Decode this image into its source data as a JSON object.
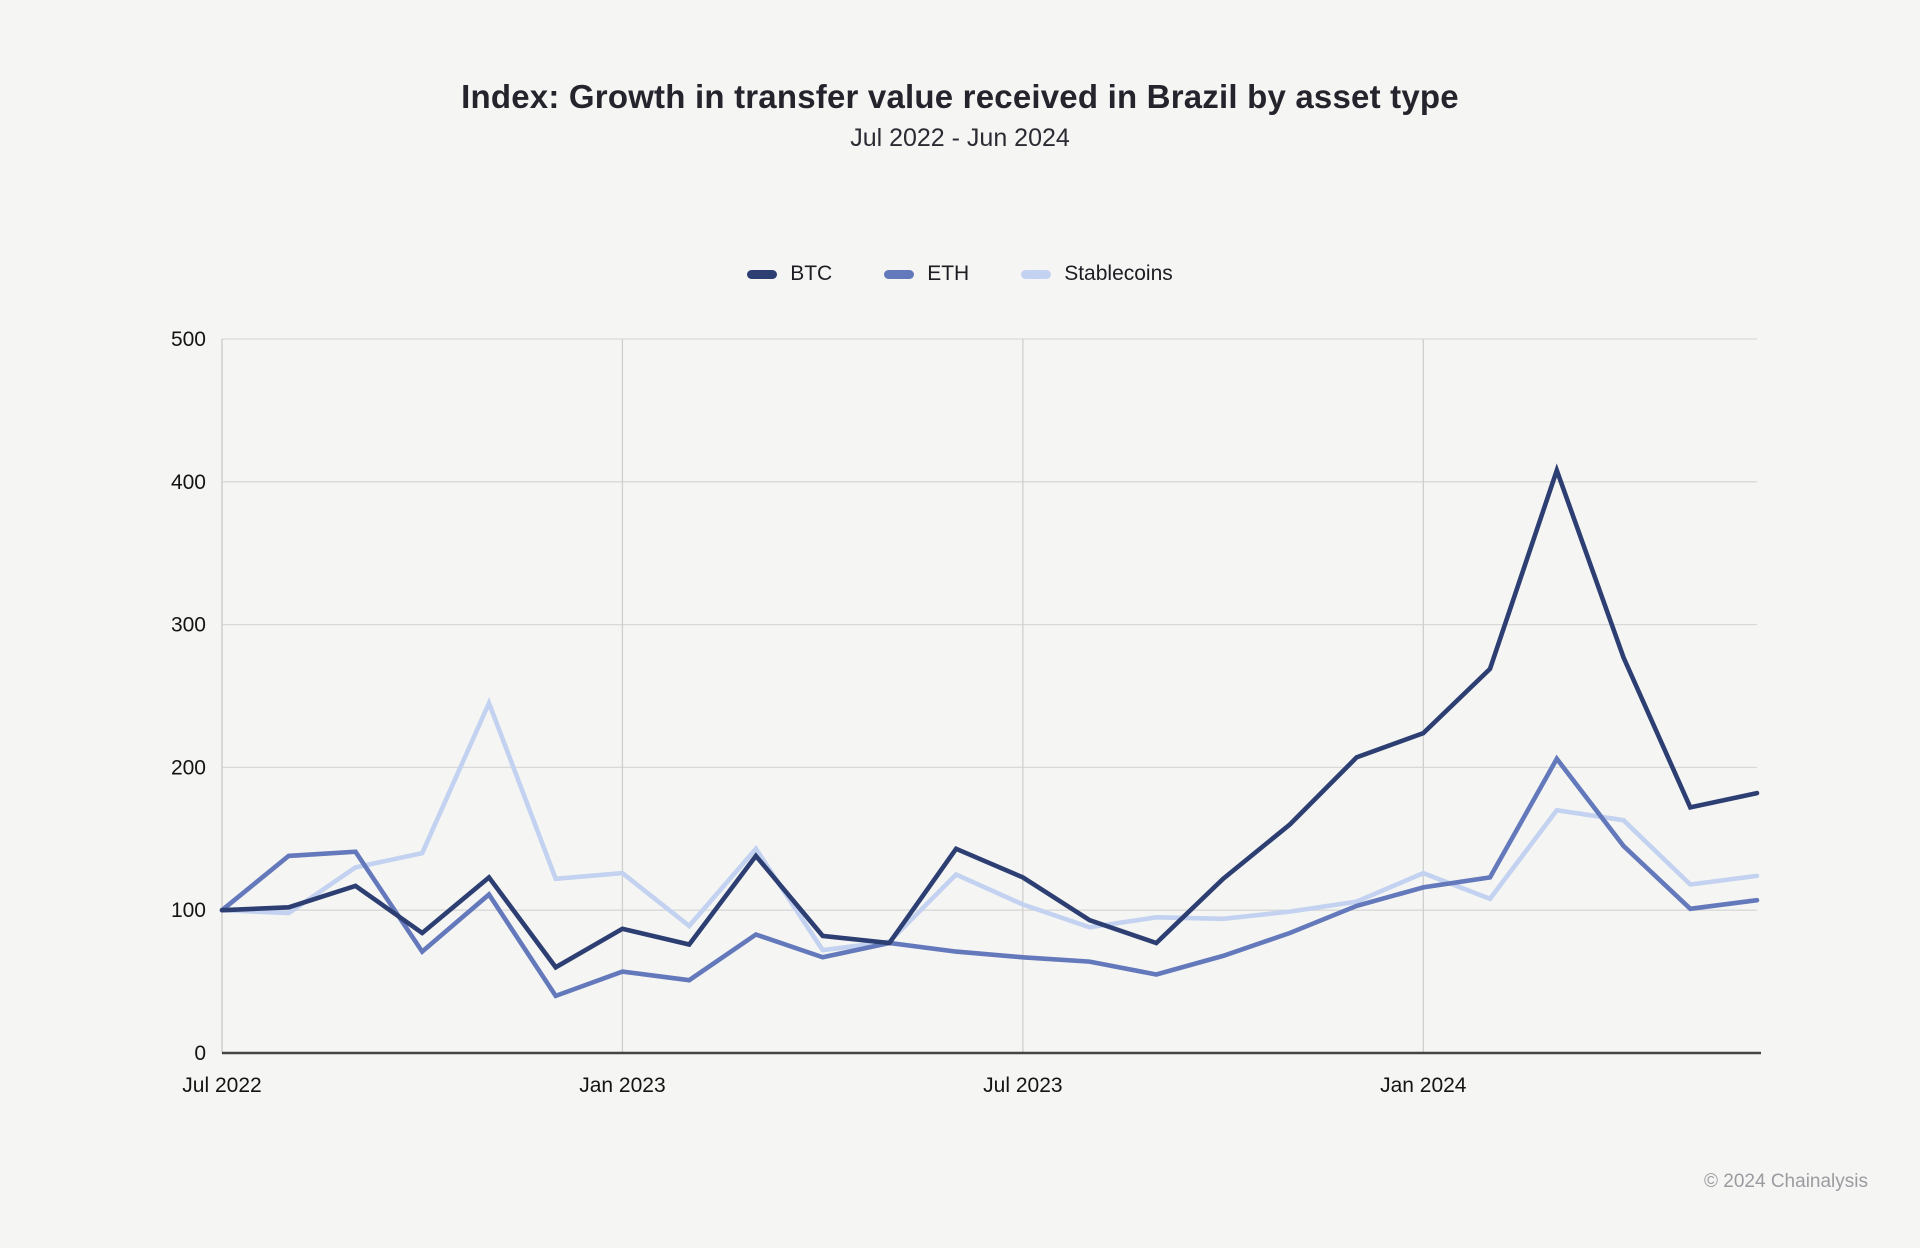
{
  "title": "Index: Growth in transfer value received in Brazil by asset type",
  "subtitle": "Jul 2022 - Jun 2024",
  "footer": "© 2024 Chainalysis",
  "colors": {
    "background": "#f5f5f3",
    "gridline": "#d9d9d9",
    "axis_line": "#454545",
    "plot_left_border": "#c9c9c9",
    "btc": "#2d3f72",
    "eth": "#6379bb",
    "stablecoins": "#c3d2f0"
  },
  "chart_data": {
    "type": "line",
    "title": "Index: Growth in transfer value received in Brazil by asset type",
    "subtitle": "Jul 2022 - Jun 2024",
    "xlabel": "",
    "ylabel": "",
    "ylim": [
      0,
      500
    ],
    "y_ticks": [
      0,
      100,
      200,
      300,
      400,
      500
    ],
    "grid": true,
    "legend_position": "top",
    "x": [
      "Jul 2022",
      "Aug 2022",
      "Sep 2022",
      "Oct 2022",
      "Nov 2022",
      "Dec 2022",
      "Jan 2023",
      "Feb 2023",
      "Mar 2023",
      "Apr 2023",
      "May 2023",
      "Jun 2023",
      "Jul 2023",
      "Aug 2023",
      "Sep 2023",
      "Oct 2023",
      "Nov 2023",
      "Dec 2023",
      "Jan 2024",
      "Feb 2024",
      "Mar 2024",
      "Apr 2024",
      "May 2024",
      "Jun 2024"
    ],
    "x_axis_ticks": [
      {
        "label": "Jul 2022",
        "index": 0
      },
      {
        "label": "Jan 2023",
        "index": 6
      },
      {
        "label": "Jul 2023",
        "index": 12
      },
      {
        "label": "Jan 2024",
        "index": 18
      }
    ],
    "series": [
      {
        "name": "BTC",
        "color": "#2d3f72",
        "values": [
          100,
          102,
          117,
          84,
          123,
          60,
          87,
          76,
          138,
          82,
          77,
          143,
          123,
          93,
          77,
          122,
          160,
          207,
          224,
          269,
          408,
          277,
          172,
          182
        ]
      },
      {
        "name": "ETH",
        "color": "#6379bb",
        "values": [
          100,
          138,
          141,
          71,
          111,
          40,
          57,
          51,
          83,
          67,
          77,
          71,
          67,
          64,
          55,
          68,
          84,
          103,
          116,
          123,
          206,
          145,
          101,
          107
        ]
      },
      {
        "name": "Stablecoins",
        "color": "#c3d2f0",
        "values": [
          100,
          98,
          130,
          140,
          245,
          122,
          126,
          89,
          143,
          72,
          78,
          125,
          104,
          88,
          95,
          94,
          99,
          106,
          126,
          108,
          170,
          163,
          118,
          124
        ]
      }
    ]
  }
}
